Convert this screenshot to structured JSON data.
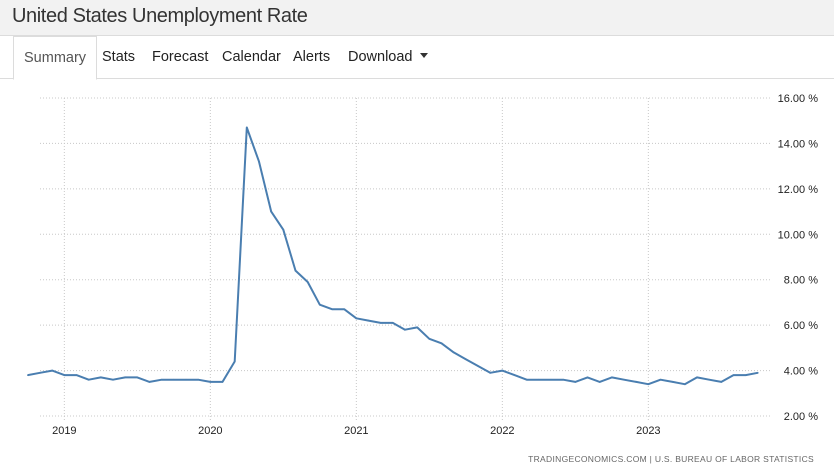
{
  "page": {
    "title": "United States Unemployment Rate"
  },
  "tabs": [
    {
      "label": "Summary"
    },
    {
      "label": "Stats"
    },
    {
      "label": "Forecast"
    },
    {
      "label": "Calendar"
    },
    {
      "label": "Alerts"
    },
    {
      "label": "Download"
    }
  ],
  "source": {
    "text": "TRADINGECONOMICS.COM  |  U.S. BUREAU OF LABOR STATISTICS"
  },
  "colors": {
    "line": "#4a7eb0",
    "grid": "#c8c8c8"
  },
  "chart_data": {
    "type": "line",
    "title": "",
    "xlabel": "",
    "ylabel": "",
    "grid": true,
    "ylim": [
      2,
      16
    ],
    "yticks": [
      2,
      4,
      6,
      8,
      10,
      12,
      14,
      16
    ],
    "ytick_labels": [
      "2.00 %",
      "4.00 %",
      "6.00 %",
      "8.00 %",
      "10.00 %",
      "12.00 %",
      "14.00 %",
      "16.00 %"
    ],
    "xtick_labels": [
      "2019",
      "2020",
      "2021",
      "2022",
      "2023"
    ],
    "xticks": [
      "2019-01",
      "2020-01",
      "2021-01",
      "2022-01",
      "2023-01"
    ],
    "xlim": [
      "2018-11",
      "2023-11"
    ],
    "series": [
      {
        "name": "",
        "x": [
          "2018-10",
          "2018-11",
          "2018-12",
          "2019-01",
          "2019-02",
          "2019-03",
          "2019-04",
          "2019-05",
          "2019-06",
          "2019-07",
          "2019-08",
          "2019-09",
          "2019-10",
          "2019-11",
          "2019-12",
          "2020-01",
          "2020-02",
          "2020-03",
          "2020-04",
          "2020-05",
          "2020-06",
          "2020-07",
          "2020-08",
          "2020-09",
          "2020-10",
          "2020-11",
          "2020-12",
          "2021-01",
          "2021-02",
          "2021-03",
          "2021-04",
          "2021-05",
          "2021-06",
          "2021-07",
          "2021-08",
          "2021-09",
          "2021-10",
          "2021-11",
          "2021-12",
          "2022-01",
          "2022-02",
          "2022-03",
          "2022-04",
          "2022-05",
          "2022-06",
          "2022-07",
          "2022-08",
          "2022-09",
          "2022-10",
          "2022-11",
          "2022-12",
          "2023-01",
          "2023-02",
          "2023-03",
          "2023-04",
          "2023-05",
          "2023-06",
          "2023-07",
          "2023-08",
          "2023-09",
          "2023-10"
        ],
        "values": [
          3.8,
          3.9,
          4.0,
          3.8,
          3.8,
          3.6,
          3.7,
          3.6,
          3.7,
          3.7,
          3.5,
          3.6,
          3.6,
          3.6,
          3.6,
          3.5,
          3.5,
          4.4,
          14.7,
          13.2,
          11.0,
          10.2,
          8.4,
          7.9,
          6.9,
          6.7,
          6.7,
          6.3,
          6.2,
          6.1,
          6.1,
          5.8,
          5.9,
          5.4,
          5.2,
          4.8,
          4.5,
          4.2,
          3.9,
          4.0,
          3.8,
          3.6,
          3.6,
          3.6,
          3.6,
          3.5,
          3.7,
          3.5,
          3.7,
          3.6,
          3.5,
          3.4,
          3.6,
          3.5,
          3.4,
          3.7,
          3.6,
          3.5,
          3.8,
          3.8,
          3.9
        ]
      }
    ]
  }
}
